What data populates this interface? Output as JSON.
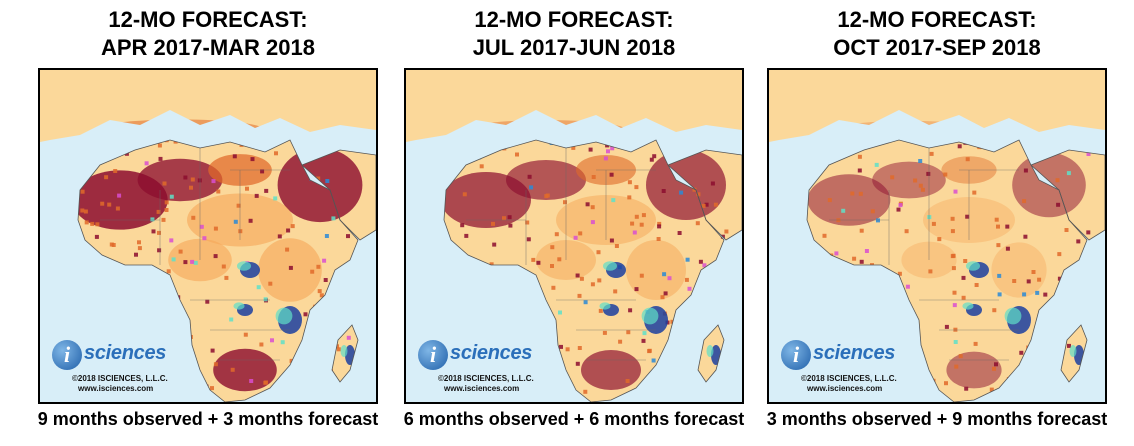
{
  "colors": {
    "ocean": "#d8eef8",
    "land": "#fbd89a",
    "deficit_mild": "#f6a85a",
    "deficit_severe": "#e06a2a",
    "deficit_exceptional": "#8c0d2f",
    "surplus": "#2a8ad6",
    "surplus_strong": "#1b3fa0",
    "both": "#d94fd0",
    "wet_mild": "#5fe0c8"
  },
  "logo": {
    "letter": "i",
    "word": "sciences",
    "copyright": "©2018 ISCIENCES, L.L.C.",
    "url": "www.isciences.com"
  },
  "panels": [
    {
      "title_line1": "12-MO FORECAST:",
      "title_line2": "APR 2017-MAR 2018",
      "caption": "9 months observed + 3 months forecast",
      "deficit_intensity": 0.9
    },
    {
      "title_line1": "12-MO FORECAST:",
      "title_line2": "JUL 2017-JUN 2018",
      "caption": "6 months observed + 6 months forecast",
      "deficit_intensity": 0.75
    },
    {
      "title_line1": "12-MO FORECAST:",
      "title_line2": "OCT 2017-SEP 2018",
      "caption": "3 months observed + 9 months forecast",
      "deficit_intensity": 0.55
    }
  ]
}
